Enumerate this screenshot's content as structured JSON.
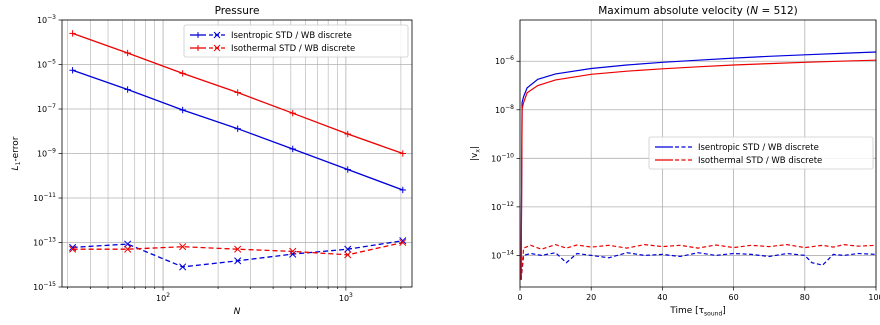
{
  "chart_data": [
    {
      "type": "line",
      "title": "Pressure",
      "xlabel": "N",
      "ylabel": "L1-error",
      "xscale": "log",
      "yscale": "log",
      "xlim": [
        28,
        2300
      ],
      "ylim": [
        1e-15,
        0.001
      ],
      "grid": true,
      "legend_position": "top-right",
      "x_tick_labels": [
        {
          "base": "10",
          "exp": "2",
          "value": 100
        },
        {
          "base": "10",
          "exp": "3",
          "value": 1000
        }
      ],
      "y_tick_labels": [
        {
          "base": "10",
          "exp": "−15",
          "value": 1e-15
        },
        {
          "base": "10",
          "exp": "−13",
          "value": 1e-13
        },
        {
          "base": "10",
          "exp": "−11",
          "value": 1e-11
        },
        {
          "base": "10",
          "exp": "−9",
          "value": 1e-09
        },
        {
          "base": "10",
          "exp": "−7",
          "value": 1e-07
        },
        {
          "base": "10",
          "exp": "−5",
          "value": 1e-05
        },
        {
          "base": "10",
          "exp": "−3",
          "value": 0.001
        }
      ],
      "x": [
        32,
        64,
        128,
        256,
        512,
        1024,
        2048
      ],
      "series": [
        {
          "name": "Isentropic STD",
          "color": "#0000dd",
          "marker": "+",
          "dash": "solid",
          "values": [
            5.5e-06,
            7.5e-07,
            9e-08,
            1.3e-08,
            1.6e-09,
            1.9e-10,
            2.3e-11
          ]
        },
        {
          "name": "Isentropic WB discrete",
          "color": "#0000dd",
          "marker": "x",
          "dash": "dashed",
          "values": [
            6e-14,
            8.5e-14,
            8e-15,
            1.5e-14,
            3e-14,
            5e-14,
            1.2e-13
          ]
        },
        {
          "name": "Isothermal STD",
          "color": "#ee0000",
          "marker": "+",
          "dash": "solid",
          "values": [
            0.00025,
            3.3e-05,
            4e-06,
            5.5e-07,
            6.5e-08,
            7.5e-09,
            1e-09
          ]
        },
        {
          "name": "Isothermal WB discrete",
          "color": "#ee0000",
          "marker": "x",
          "dash": "dashed",
          "values": [
            5e-14,
            5e-14,
            6.5e-14,
            5e-14,
            4e-14,
            2.8e-14,
            1e-13
          ]
        }
      ],
      "legend": [
        {
          "label": "Isentropic STD / WB discrete",
          "color": "#0000dd"
        },
        {
          "label": "Isothermal STD / WB discrete",
          "color": "#ee0000"
        }
      ]
    },
    {
      "type": "line",
      "title": "Maximum absolute velocity (N = 512)",
      "title_prefix": "Maximum absolute velocity (",
      "title_var": "N",
      "title_suffix": " = 512)",
      "xlabel": "Time [τsound]",
      "xlabel_main": "Time [τ",
      "xlabel_sub": "sound",
      "xlabel_close": "]",
      "ylabel": "|vx|",
      "ylabel_main": "|v",
      "ylabel_sub": "x",
      "ylabel_close": "|",
      "xscale": "linear",
      "yscale": "log",
      "xlim": [
        0,
        100
      ],
      "ylim": [
        5e-16,
        5e-05
      ],
      "grid": true,
      "legend_position": "center-right",
      "x_tick_labels": [
        "0",
        "20",
        "40",
        "60",
        "80",
        "100"
      ],
      "y_tick_labels": [
        {
          "base": "10",
          "exp": "−14",
          "value": 1e-14
        },
        {
          "base": "10",
          "exp": "−12",
          "value": 1e-12
        },
        {
          "base": "10",
          "exp": "−10",
          "value": 1e-10
        },
        {
          "base": "10",
          "exp": "−8",
          "value": 1e-08
        },
        {
          "base": "10",
          "exp": "−6",
          "value": 1e-06
        }
      ],
      "series": [
        {
          "name": "Isentropic STD",
          "color": "#0000dd",
          "dash": "solid",
          "x": [
            0.3,
            0.6,
            1,
            2,
            5,
            10,
            20,
            30,
            40,
            50,
            60,
            70,
            80,
            90,
            100
          ],
          "values": [
            1e-15,
            2e-08,
            3.5e-08,
            8e-08,
            1.8e-07,
            3e-07,
            5e-07,
            7e-07,
            9e-07,
            1.1e-06,
            1.35e-06,
            1.6e-06,
            1.85e-06,
            2.1e-06,
            2.4e-06
          ]
        },
        {
          "name": "Isothermal STD",
          "color": "#ee0000",
          "dash": "solid",
          "x": [
            0.3,
            0.6,
            1,
            2,
            5,
            10,
            20,
            30,
            40,
            50,
            60,
            70,
            80,
            90,
            100
          ],
          "values": [
            1e-15,
            1.1e-08,
            2e-08,
            5e-08,
            1e-07,
            1.7e-07,
            2.9e-07,
            3.9e-07,
            4.9e-07,
            5.9e-07,
            7e-07,
            8e-07,
            9e-07,
            1e-06,
            1.1e-06
          ]
        },
        {
          "name": "Isentropic WB discrete",
          "color": "#0000dd",
          "dash": "dashed",
          "x": [
            0.3,
            1,
            3,
            6,
            10,
            13,
            16,
            20,
            25,
            30,
            35,
            40,
            45,
            50,
            55,
            60,
            65,
            70,
            75,
            80,
            82,
            85,
            88,
            91,
            95,
            100
          ],
          "values": [
            1e-15,
            1e-14,
            1.2e-14,
            1e-14,
            1.3e-14,
            5e-15,
            1.2e-14,
            1e-14,
            8e-15,
            1.3e-14,
            1e-14,
            1.1e-14,
            9e-15,
            1.3e-14,
            1e-14,
            1.2e-14,
            1.1e-14,
            9e-15,
            1.2e-14,
            1e-14,
            5e-15,
            4e-15,
            1.1e-14,
            1e-14,
            1.2e-14,
            1.1e-14
          ]
        },
        {
          "name": "Isothermal WB discrete",
          "color": "#ee0000",
          "dash": "dashed",
          "x": [
            0.3,
            1,
            3,
            6,
            10,
            13,
            16,
            20,
            25,
            30,
            35,
            40,
            45,
            50,
            55,
            60,
            65,
            70,
            75,
            80,
            85,
            88,
            91,
            95,
            100
          ],
          "values": [
            1e-15,
            2e-14,
            2.6e-14,
            1.8e-14,
            2.8e-14,
            2e-14,
            2.7e-14,
            2.2e-14,
            2.6e-14,
            2e-14,
            2.8e-14,
            2.3e-14,
            2.6e-14,
            2e-14,
            2.7e-14,
            2.1e-14,
            2.6e-14,
            2.3e-14,
            2.8e-14,
            2.1e-14,
            2.6e-14,
            2.2e-14,
            2.8e-14,
            2.4e-14,
            2.6e-14
          ]
        }
      ],
      "legend": [
        {
          "label": "Isentropic STD / WB discrete",
          "color": "#0000dd"
        },
        {
          "label": "Isothermal STD / WB discrete",
          "color": "#ee0000"
        }
      ]
    }
  ]
}
